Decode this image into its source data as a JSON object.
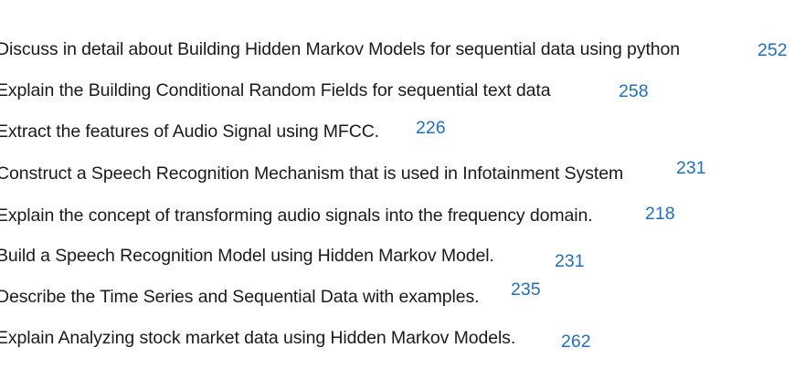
{
  "accent_color": "#1f6fbf",
  "questions": [
    {
      "text": "Discuss in detail about Building Hidden Markov Models for sequential data using python",
      "page": "252"
    },
    {
      "text": "Explain the Building Conditional Random Fields for sequential text data",
      "page": "258"
    },
    {
      "text": "Extract the features of Audio Signal using MFCC.",
      "page": "226"
    },
    {
      "text": "Construct a Speech Recognition Mechanism that is used in Infotainment System",
      "page": "231"
    },
    {
      "text": "Explain the concept of transforming audio signals into the frequency domain.",
      "page": "218"
    },
    {
      "text": "Build a Speech Recognition Model using Hidden Markov Model.",
      "page": "231"
    },
    {
      "text": "Describe the Time Series and Sequential Data with examples.",
      "page": "235"
    },
    {
      "text": "Explain Analyzing stock market data using Hidden Markov Models.",
      "page": "262"
    }
  ]
}
